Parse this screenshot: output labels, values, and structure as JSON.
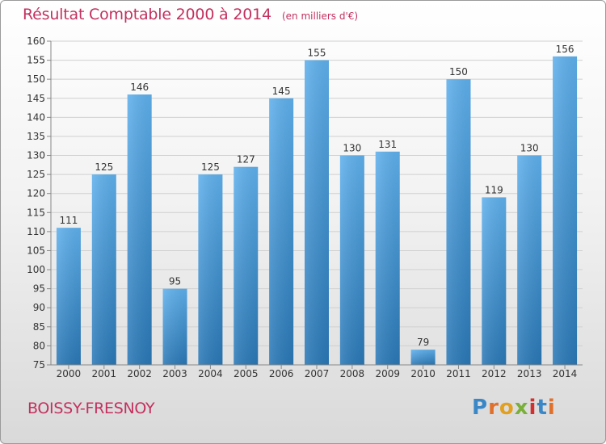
{
  "header": {
    "title": "Résultat Comptable 2000 à 2014",
    "subtitle": "(en milliers d'€)"
  },
  "footer": {
    "commune": "BOISSY-FRESNOY",
    "logo": "Proxiti"
  },
  "colors": {
    "title": "#c3305f",
    "bar_top": "#5aacE8",
    "bar_bottom": "#2a7ab8",
    "logo_letters": [
      "#3a87c8",
      "#e0702a",
      "#e2a020",
      "#7ab03a",
      "#d03030",
      "#3a87c8",
      "#e0702a"
    ]
  },
  "chart_data": {
    "type": "bar",
    "title": "Résultat Comptable 2000 à 2014",
    "subtitle": "(en milliers d'€)",
    "categories": [
      "2000",
      "2001",
      "2002",
      "2003",
      "2004",
      "2005",
      "2006",
      "2007",
      "2008",
      "2009",
      "2010",
      "2011",
      "2012",
      "2013",
      "2014"
    ],
    "values": [
      111,
      125,
      146,
      95,
      125,
      127,
      145,
      155,
      130,
      131,
      79,
      150,
      119,
      130,
      156
    ],
    "ylim": [
      75,
      160
    ],
    "yticks": [
      75,
      80,
      85,
      90,
      95,
      100,
      105,
      110,
      115,
      120,
      125,
      130,
      135,
      140,
      145,
      150,
      155,
      160
    ],
    "grid": true,
    "xlabel": "",
    "ylabel": ""
  }
}
